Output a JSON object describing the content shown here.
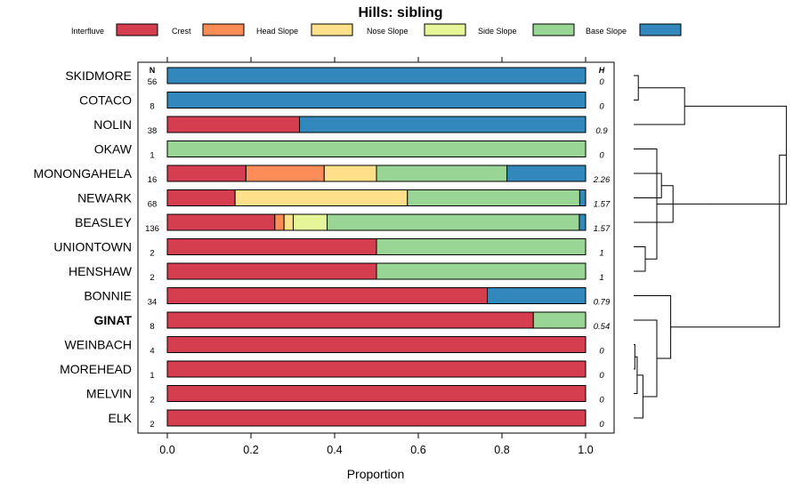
{
  "chart_data": {
    "type": "bar",
    "orientation": "horizontal",
    "stacked": true,
    "title": "Hills: sibling",
    "xlabel": "Proportion",
    "ylabel": "",
    "xlim": [
      0,
      1
    ],
    "xticks": [
      "0.0",
      "0.2",
      "0.4",
      "0.6",
      "0.8",
      "1.0"
    ],
    "n_header": "N",
    "h_header": "H",
    "legend": [
      {
        "name": "Interfluve",
        "color": "#d53e4f"
      },
      {
        "name": "Crest",
        "color": "#fc8d59"
      },
      {
        "name": "Head Slope",
        "color": "#fee08b"
      },
      {
        "name": "Nose Slope",
        "color": "#e6f598"
      },
      {
        "name": "Side Slope",
        "color": "#99d594"
      },
      {
        "name": "Base Slope",
        "color": "#3288bd"
      }
    ],
    "categories": [
      "SKIDMORE",
      "COTACO",
      "NOLIN",
      "OKAW",
      "MONONGAHELA",
      "NEWARK",
      "BEASLEY",
      "UNIONTOWN",
      "HENSHAW",
      "BONNIE",
      "GINAT",
      "WEINBACH",
      "MOREHEAD",
      "MELVIN",
      "ELK"
    ],
    "highlight": "GINAT",
    "n": [
      "56",
      "8",
      "38",
      "1",
      "16",
      "68",
      "136",
      "2",
      "2",
      "34",
      "8",
      "4",
      "1",
      "2",
      "2"
    ],
    "h": [
      "0",
      "0",
      "0.9",
      "0",
      "2.26",
      "1.57",
      "1.57",
      "1",
      "1",
      "0.79",
      "0.54",
      "0",
      "0",
      "0",
      "0"
    ],
    "series": [
      {
        "name": "Interfluve",
        "values": [
          0,
          0,
          0.316,
          0,
          0.188,
          0.162,
          0.257,
          0.5,
          0.5,
          0.765,
          0.875,
          1,
          1,
          1,
          1
        ]
      },
      {
        "name": "Crest",
        "values": [
          0,
          0,
          0,
          0,
          0.187,
          0,
          0.022,
          0,
          0,
          0,
          0,
          0,
          0,
          0,
          0
        ]
      },
      {
        "name": "Head Slope",
        "values": [
          0,
          0,
          0,
          0,
          0.125,
          0.412,
          0.022,
          0,
          0,
          0,
          0,
          0,
          0,
          0,
          0
        ]
      },
      {
        "name": "Nose Slope",
        "values": [
          0,
          0,
          0,
          0,
          0,
          0,
          0.081,
          0,
          0,
          0,
          0,
          0,
          0,
          0,
          0
        ]
      },
      {
        "name": "Side Slope",
        "values": [
          0,
          0,
          0,
          1,
          0.312,
          0.412,
          0.603,
          0.5,
          0.5,
          0,
          0.125,
          0,
          0,
          0,
          0
        ]
      },
      {
        "name": "Base Slope",
        "values": [
          1,
          1,
          0.684,
          0,
          0.188,
          0.014,
          0.015,
          0,
          0,
          0.235,
          0,
          0,
          0,
          0,
          0
        ]
      }
    ],
    "dendrogram": {
      "merges": [
        {
          "a": "SKIDMORE",
          "b": "COTACO",
          "height": 0.02
        },
        {
          "a": "m0",
          "b": "NOLIN",
          "height": 0.22
        },
        {
          "a": "MONONGAHELA",
          "b": "NEWARK",
          "height": 0.12
        },
        {
          "a": "m2",
          "b": "BEASLEY",
          "height": 0.17
        },
        {
          "a": "UNIONTOWN",
          "b": "HENSHAW",
          "height": 0.05
        },
        {
          "a": "m4",
          "b": "OKAW",
          "height": 0.1
        },
        {
          "a": "m3",
          "b": "m5",
          "height": 0.31
        },
        {
          "a": "m1",
          "b": "m6",
          "height": 0.66
        },
        {
          "a": "WEINBACH",
          "b": "MOREHEAD",
          "height": 0.005
        },
        {
          "a": "m8",
          "b": "MELVIN",
          "height": 0.015
        },
        {
          "a": "m9",
          "b": "ELK",
          "height": 0.04
        },
        {
          "a": "m10",
          "b": "GINAT",
          "height": 0.1
        },
        {
          "a": "m11",
          "b": "BONNIE",
          "height": 0.16
        },
        {
          "a": "m7",
          "b": "m12",
          "height": 0.63
        }
      ]
    }
  }
}
